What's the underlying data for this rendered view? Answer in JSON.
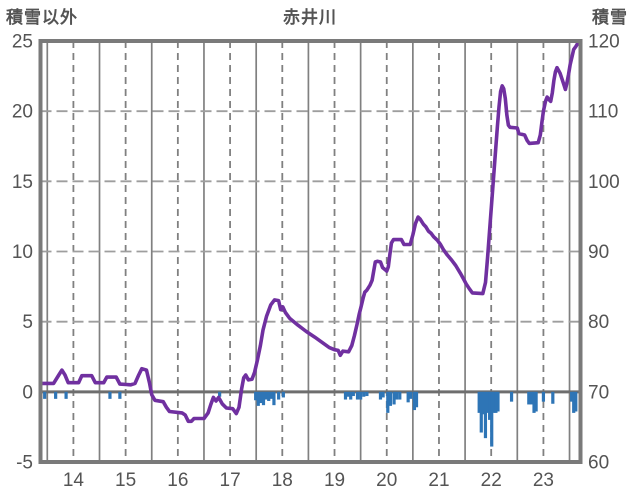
{
  "header": {
    "title": "赤井川",
    "left_axis_label": "積雪以外",
    "right_axis_label": "積雪"
  },
  "colors": {
    "line": "#7030A0",
    "bars": "#2E75B6",
    "frame": "#7a7a7a",
    "grid_vertical": "#808080",
    "grid_horizontal": "#9e9e9e",
    "zero_line": "#6e6e6e",
    "text": "#545454"
  },
  "chart_data": {
    "type": "line",
    "title": "赤井川",
    "x_axis": {
      "min": 13.37,
      "max": 23.71,
      "tick_values": [
        14,
        15,
        16,
        17,
        18,
        19,
        20,
        21,
        22,
        23
      ],
      "tick_labels": [
        "14",
        "15",
        "16",
        "17",
        "18",
        "19",
        "20",
        "21",
        "22",
        "23"
      ],
      "solid_gridlines": [
        13.5,
        14.5,
        15.5,
        16.5,
        17.5,
        18.5,
        19.5,
        20.5,
        21.5,
        22.5,
        23.5
      ]
    },
    "left_axis": {
      "label": "積雪以外",
      "min": -5,
      "max": 25,
      "ticks": [
        25,
        20,
        15,
        10,
        5,
        0,
        -5
      ]
    },
    "right_axis": {
      "label": "積雪",
      "min": 60,
      "max": 120,
      "ticks": [
        120,
        110,
        100,
        90,
        80,
        70,
        60
      ]
    },
    "grid": {
      "horizontal_dashed_at_left_values": [
        5,
        10,
        15,
        20
      ],
      "zero_line_at": 0,
      "legend": "none"
    },
    "series": [
      {
        "name": "積雪以外 (line)",
        "type": "line",
        "axis": "left",
        "points": [
          [
            13.37,
            0.6
          ],
          [
            13.62,
            0.6
          ],
          [
            13.72,
            1.2
          ],
          [
            13.78,
            1.55
          ],
          [
            13.84,
            1.2
          ],
          [
            13.9,
            0.65
          ],
          [
            14.1,
            0.65
          ],
          [
            14.16,
            1.15
          ],
          [
            14.35,
            1.15
          ],
          [
            14.42,
            0.65
          ],
          [
            14.58,
            0.65
          ],
          [
            14.64,
            1.05
          ],
          [
            14.82,
            1.05
          ],
          [
            14.89,
            0.55
          ],
          [
            15.1,
            0.5
          ],
          [
            15.18,
            0.6
          ],
          [
            15.25,
            1.2
          ],
          [
            15.31,
            1.65
          ],
          [
            15.4,
            1.55
          ],
          [
            15.46,
            0.6
          ],
          [
            15.5,
            -0.2
          ],
          [
            15.56,
            -0.6
          ],
          [
            15.72,
            -0.7
          ],
          [
            15.78,
            -1.1
          ],
          [
            15.84,
            -1.4
          ],
          [
            16.08,
            -1.5
          ],
          [
            16.14,
            -1.65
          ],
          [
            16.2,
            -2.1
          ],
          [
            16.26,
            -2.1
          ],
          [
            16.31,
            -1.9
          ],
          [
            16.5,
            -1.9
          ],
          [
            16.58,
            -1.5
          ],
          [
            16.63,
            -0.9
          ],
          [
            16.68,
            -0.4
          ],
          [
            16.73,
            -0.65
          ],
          [
            16.78,
            -0.4
          ],
          [
            16.85,
            -0.85
          ],
          [
            16.93,
            -1.15
          ],
          [
            17.05,
            -1.2
          ],
          [
            17.12,
            -1.55
          ],
          [
            17.17,
            -1.1
          ],
          [
            17.22,
            0.2
          ],
          [
            17.26,
            1.0
          ],
          [
            17.3,
            1.2
          ],
          [
            17.35,
            0.85
          ],
          [
            17.42,
            0.9
          ],
          [
            17.47,
            1.4
          ],
          [
            17.52,
            2.2
          ],
          [
            17.58,
            3.3
          ],
          [
            17.63,
            4.4
          ],
          [
            17.7,
            5.4
          ],
          [
            17.78,
            6.2
          ],
          [
            17.85,
            6.55
          ],
          [
            17.93,
            6.5
          ],
          [
            17.97,
            5.85
          ],
          [
            18.01,
            6.05
          ],
          [
            18.06,
            5.65
          ],
          [
            18.14,
            5.25
          ],
          [
            18.3,
            4.75
          ],
          [
            18.46,
            4.3
          ],
          [
            18.62,
            3.9
          ],
          [
            18.77,
            3.5
          ],
          [
            18.9,
            3.15
          ],
          [
            19.0,
            3.0
          ],
          [
            19.07,
            2.95
          ],
          [
            19.11,
            2.6
          ],
          [
            19.16,
            2.9
          ],
          [
            19.27,
            2.85
          ],
          [
            19.33,
            3.3
          ],
          [
            19.38,
            4.0
          ],
          [
            19.43,
            4.8
          ],
          [
            19.47,
            5.5
          ],
          [
            19.51,
            6.1
          ],
          [
            19.55,
            6.7
          ],
          [
            19.58,
            7.1
          ],
          [
            19.62,
            7.25
          ],
          [
            19.68,
            7.6
          ],
          [
            19.72,
            7.95
          ],
          [
            19.75,
            8.6
          ],
          [
            19.78,
            9.25
          ],
          [
            19.82,
            9.3
          ],
          [
            19.88,
            9.25
          ],
          [
            19.92,
            8.85
          ],
          [
            19.97,
            8.7
          ],
          [
            20.0,
            8.6
          ],
          [
            20.03,
            8.9
          ],
          [
            20.06,
            9.8
          ],
          [
            20.09,
            10.6
          ],
          [
            20.13,
            10.85
          ],
          [
            20.28,
            10.85
          ],
          [
            20.33,
            10.5
          ],
          [
            20.45,
            10.5
          ],
          [
            20.5,
            11.2
          ],
          [
            20.55,
            12.0
          ],
          [
            20.6,
            12.45
          ],
          [
            20.64,
            12.3
          ],
          [
            20.7,
            11.95
          ],
          [
            20.75,
            11.75
          ],
          [
            20.8,
            11.45
          ],
          [
            20.85,
            11.3
          ],
          [
            20.9,
            11.05
          ],
          [
            20.97,
            10.8
          ],
          [
            21.03,
            10.5
          ],
          [
            21.09,
            10.1
          ],
          [
            21.16,
            9.75
          ],
          [
            21.24,
            9.4
          ],
          [
            21.32,
            9.0
          ],
          [
            21.41,
            8.45
          ],
          [
            21.47,
            8.05
          ],
          [
            21.52,
            7.7
          ],
          [
            21.58,
            7.35
          ],
          [
            21.64,
            7.05
          ],
          [
            21.84,
            7.0
          ],
          [
            21.89,
            7.8
          ],
          [
            21.93,
            9.5
          ],
          [
            21.97,
            11.5
          ],
          [
            22.01,
            13.5
          ],
          [
            22.05,
            15.5
          ],
          [
            22.09,
            17.5
          ],
          [
            22.12,
            19.0
          ],
          [
            22.15,
            20.3
          ],
          [
            22.18,
            21.4
          ],
          [
            22.21,
            21.8
          ],
          [
            22.24,
            21.6
          ],
          [
            22.27,
            20.9
          ],
          [
            22.3,
            19.7
          ],
          [
            22.33,
            19.0
          ],
          [
            22.36,
            18.85
          ],
          [
            22.5,
            18.8
          ],
          [
            22.53,
            18.4
          ],
          [
            22.64,
            18.3
          ],
          [
            22.69,
            17.9
          ],
          [
            22.73,
            17.7
          ],
          [
            22.9,
            17.75
          ],
          [
            22.94,
            18.3
          ],
          [
            22.97,
            19.2
          ],
          [
            23.0,
            20.0
          ],
          [
            23.04,
            20.7
          ],
          [
            23.07,
            21.0
          ],
          [
            23.1,
            20.85
          ],
          [
            23.14,
            20.7
          ],
          [
            23.17,
            21.3
          ],
          [
            23.2,
            22.2
          ],
          [
            23.23,
            22.8
          ],
          [
            23.26,
            23.1
          ],
          [
            23.29,
            22.9
          ],
          [
            23.32,
            22.7
          ],
          [
            23.36,
            22.25
          ],
          [
            23.39,
            21.9
          ],
          [
            23.42,
            21.55
          ],
          [
            23.45,
            22.0
          ],
          [
            23.48,
            22.6
          ],
          [
            23.51,
            23.3
          ],
          [
            23.55,
            23.9
          ],
          [
            23.58,
            24.4
          ],
          [
            23.62,
            24.6
          ],
          [
            23.66,
            24.85
          ],
          [
            23.71,
            25.0
          ]
        ]
      },
      {
        "name": "積雪 (bars)",
        "type": "bar",
        "axis": "left",
        "points": [
          [
            13.45,
            -0.5
          ],
          [
            13.66,
            -0.5
          ],
          [
            13.86,
            -0.5
          ],
          [
            14.7,
            -0.5
          ],
          [
            14.89,
            -0.5
          ],
          [
            16.8,
            -0.35
          ],
          [
            17.49,
            -0.6
          ],
          [
            17.54,
            -1.0
          ],
          [
            17.59,
            -0.8
          ],
          [
            17.64,
            -0.95
          ],
          [
            17.69,
            -0.55
          ],
          [
            17.74,
            -0.65
          ],
          [
            17.79,
            -0.5
          ],
          [
            17.84,
            -0.95
          ],
          [
            17.93,
            -0.55
          ],
          [
            18.02,
            -0.4
          ],
          [
            19.21,
            -0.55
          ],
          [
            19.26,
            -0.35
          ],
          [
            19.31,
            -0.55
          ],
          [
            19.36,
            -0.3
          ],
          [
            19.44,
            -0.55
          ],
          [
            19.5,
            -0.55
          ],
          [
            19.56,
            -0.35
          ],
          [
            19.62,
            -0.3
          ],
          [
            19.88,
            -0.55
          ],
          [
            19.93,
            -0.4
          ],
          [
            20.02,
            -1.5
          ],
          [
            20.07,
            -1.0
          ],
          [
            20.14,
            -0.9
          ],
          [
            20.19,
            -0.55
          ],
          [
            20.25,
            -0.55
          ],
          [
            20.41,
            -0.75
          ],
          [
            20.46,
            -0.5
          ],
          [
            20.53,
            -1.3
          ],
          [
            20.57,
            -1.1
          ],
          [
            21.77,
            -1.5
          ],
          [
            21.81,
            -2.9
          ],
          [
            21.85,
            -1.6
          ],
          [
            21.89,
            -3.3
          ],
          [
            21.93,
            -1.5
          ],
          [
            21.97,
            -2.0
          ],
          [
            22.01,
            -3.9
          ],
          [
            22.05,
            -1.5
          ],
          [
            22.09,
            -1.5
          ],
          [
            22.13,
            -1.4
          ],
          [
            22.39,
            -0.7
          ],
          [
            22.72,
            -0.9
          ],
          [
            22.77,
            -0.9
          ],
          [
            22.82,
            -1.5
          ],
          [
            22.86,
            -1.4
          ],
          [
            23.0,
            -0.7
          ],
          [
            23.18,
            -0.85
          ],
          [
            23.54,
            -0.7
          ],
          [
            23.58,
            -1.5
          ],
          [
            23.62,
            -1.4
          ]
        ]
      }
    ]
  }
}
